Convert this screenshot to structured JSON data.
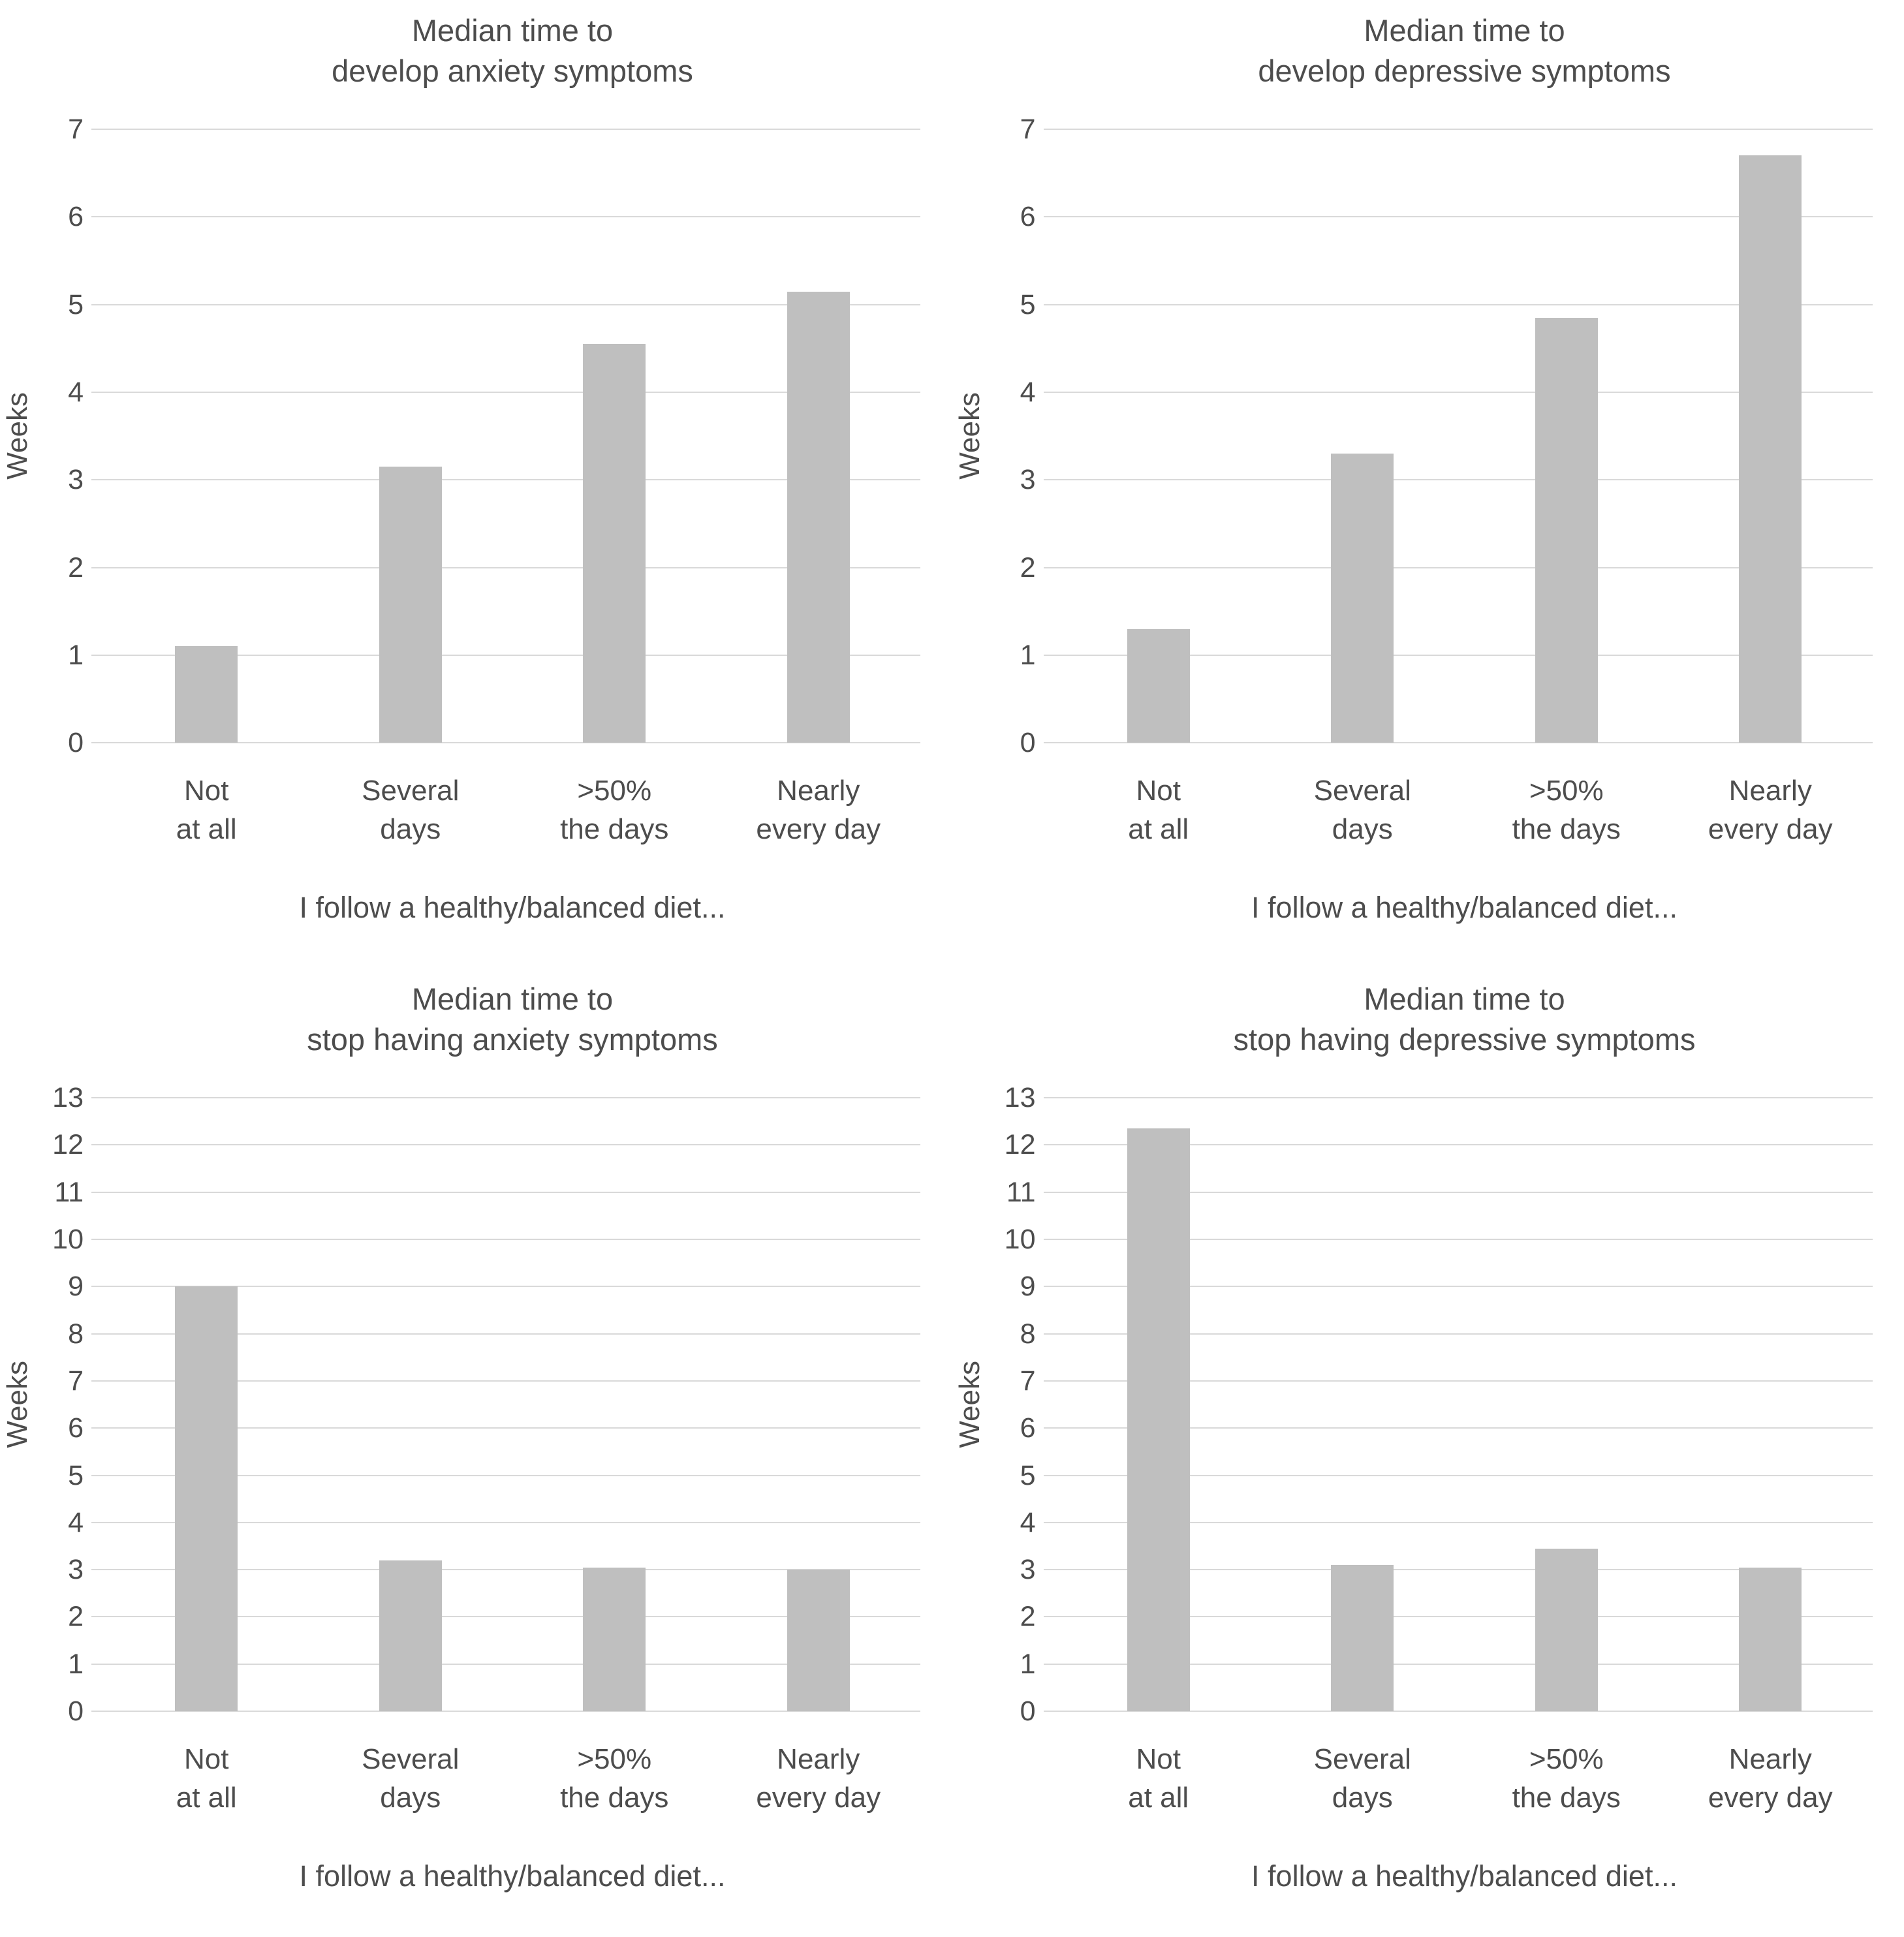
{
  "page": {
    "background_color": "#ffffff",
    "text_color": "#4d4d4d",
    "bar_color": "#bfbfbf",
    "gridline_color": "#d9d9d9"
  },
  "chart_data": [
    {
      "type": "bar",
      "title": "Median time to\ndevelop anxiety symptoms",
      "categories": [
        "Not\nat all",
        "Several\ndays",
        ">50%\nthe days",
        "Nearly\nevery day"
      ],
      "values": [
        1.1,
        3.15,
        4.55,
        5.15
      ],
      "xlabel": "I follow a healthy/balanced diet...",
      "ylabel": "Weeks",
      "ylim": [
        0,
        7
      ],
      "ytick_step": 1,
      "grid": true,
      "legend": "none"
    },
    {
      "type": "bar",
      "title": "Median time to\ndevelop depressive symptoms",
      "categories": [
        "Not\nat all",
        "Several\ndays",
        ">50%\nthe days",
        "Nearly\nevery day"
      ],
      "values": [
        1.3,
        3.3,
        4.85,
        6.7
      ],
      "xlabel": "I follow a healthy/balanced diet...",
      "ylabel": "Weeks",
      "ylim": [
        0,
        7
      ],
      "ytick_step": 1,
      "grid": true,
      "legend": "none"
    },
    {
      "type": "bar",
      "title": "Median time to\nstop having anxiety symptoms",
      "categories": [
        "Not\nat all",
        "Several\ndays",
        ">50%\nthe days",
        "Nearly\nevery day"
      ],
      "values": [
        9.0,
        3.2,
        3.05,
        3.0
      ],
      "xlabel": "I follow a healthy/balanced diet...",
      "ylabel": "Weeks",
      "ylim": [
        0,
        13
      ],
      "ytick_step": 1,
      "grid": true,
      "legend": "none"
    },
    {
      "type": "bar",
      "title": "Median time to\nstop having depressive symptoms",
      "categories": [
        "Not\nat all",
        "Several\ndays",
        ">50%\nthe days",
        "Nearly\nevery day"
      ],
      "values": [
        12.35,
        3.1,
        3.45,
        3.05
      ],
      "xlabel": "I follow a healthy/balanced diet...",
      "ylabel": "Weeks",
      "ylim": [
        0,
        13
      ],
      "ytick_step": 1,
      "grid": true,
      "legend": "none"
    }
  ]
}
